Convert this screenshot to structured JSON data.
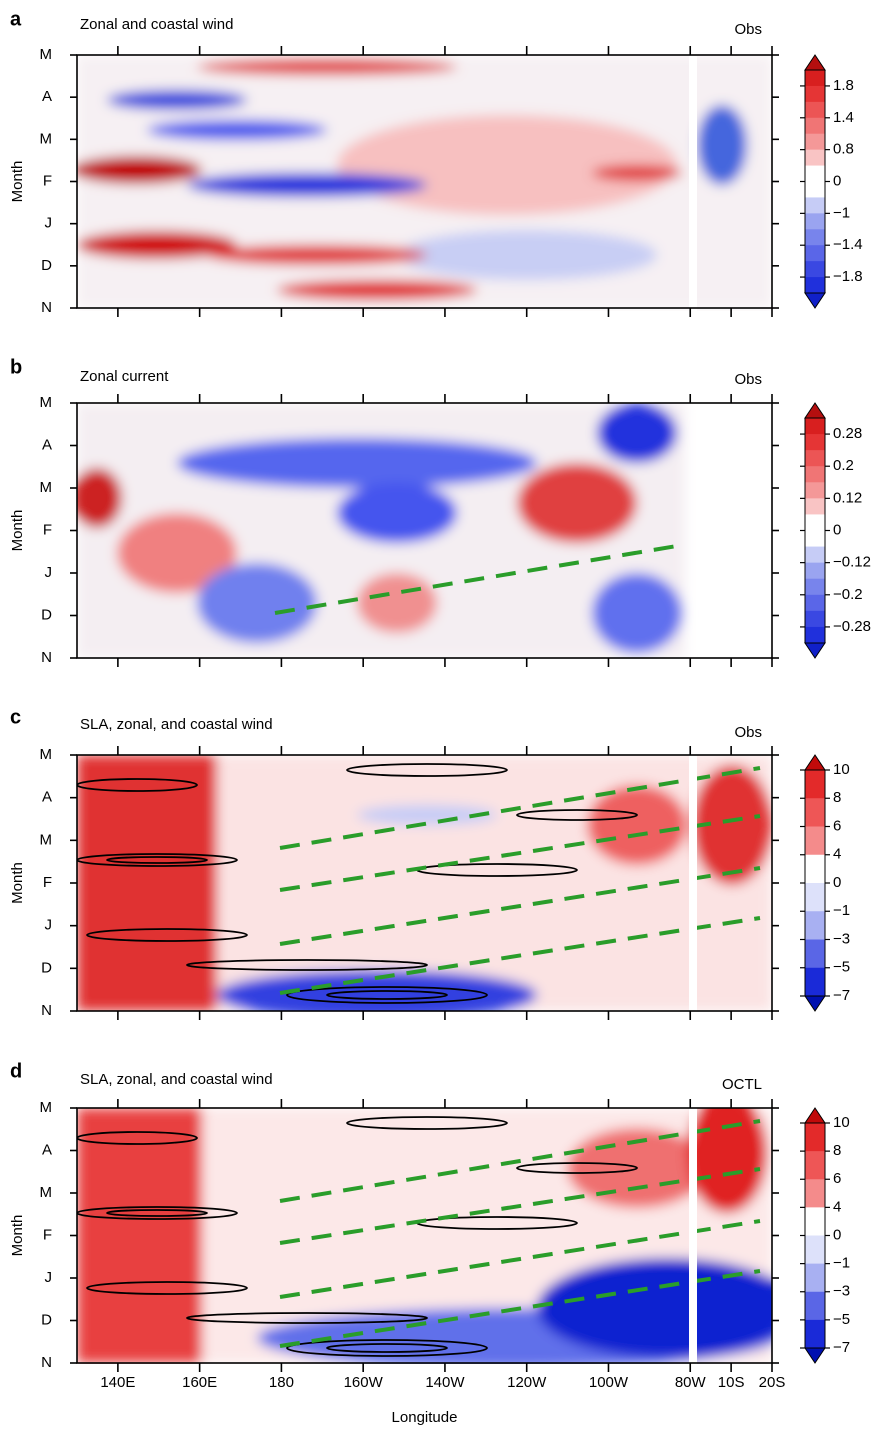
{
  "chart_data": [
    {
      "type": "contour",
      "panel_label": "a",
      "title": "Zonal and coastal wind",
      "corner_label": "Obs",
      "ylabel": "Month",
      "categories": [
        "N",
        "D",
        "J",
        "F",
        "M",
        "A",
        "M"
      ],
      "xlim": [
        130,
        300
      ],
      "xticks": [
        140,
        160,
        180,
        200,
        220,
        240,
        260,
        280,
        290,
        300
      ],
      "colorbar": {
        "ticks": [
          1.8,
          1.4,
          0.8,
          0,
          {
            "value": -1,
            "label": "−1"
          },
          {
            "value": -1.4,
            "label": "−1.4"
          },
          {
            "value": -1.8,
            "label": "−1.8"
          }
        ],
        "colors": [
          "#b40f0f",
          "#d81f1f",
          "#e53535",
          "#ec5555",
          "#f07575",
          "#f49898",
          "#f9c4c4",
          "#ffffff",
          "#ffffff",
          "#c6ccf6",
          "#9aa4f0",
          "#7884ec",
          "#5a66e8",
          "#3a48e2",
          "#2030dc",
          "#1020c8"
        ]
      }
    },
    {
      "type": "contour",
      "panel_label": "b",
      "title": "Zonal current",
      "corner_label": "Obs",
      "ylabel": "Month",
      "categories": [
        "N",
        "D",
        "J",
        "F",
        "M",
        "A",
        "M"
      ],
      "xlim": [
        130,
        300
      ],
      "xticks": [
        140,
        160,
        180,
        200,
        220,
        240,
        260,
        280,
        290,
        300
      ],
      "colorbar": {
        "ticks": [
          0.28,
          0.2,
          0.12,
          0,
          {
            "value": -0.12,
            "label": "−0.12"
          },
          {
            "value": -0.2,
            "label": "−0.2"
          },
          {
            "value": -0.28,
            "label": "−0.28"
          }
        ],
        "colors": [
          "#b40f0f",
          "#d81f1f",
          "#e53535",
          "#ec5555",
          "#f07575",
          "#f49898",
          "#f9c4c4",
          "#ffffff",
          "#ffffff",
          "#c6ccf6",
          "#9aa4f0",
          "#7884ec",
          "#5a66e8",
          "#3a48e2",
          "#2030dc",
          "#1020c8"
        ]
      }
    },
    {
      "type": "contour",
      "panel_label": "c",
      "title": "SLA, zonal, and coastal wind",
      "corner_label": "Obs",
      "ylabel": "Month",
      "categories": [
        "N",
        "D",
        "J",
        "F",
        "M",
        "A",
        "M"
      ],
      "xlim": [
        130,
        300
      ],
      "xticks": [
        140,
        160,
        180,
        200,
        220,
        240,
        260,
        280,
        290,
        300
      ],
      "colorbar": {
        "ticks": [
          10,
          8,
          6,
          4,
          0,
          {
            "value": -1,
            "label": "−1"
          },
          {
            "value": -3,
            "label": "−3"
          },
          {
            "value": -5,
            "label": "−5"
          },
          {
            "value": -7,
            "label": "−7"
          }
        ],
        "colors": [
          "#c00a0a",
          "#e32a2a",
          "#ee5656",
          "#f48b8b",
          "#ffffff",
          "#dde1fa",
          "#a8b0f2",
          "#5a66e6",
          "#1a2ad8",
          "#0010b0"
        ]
      }
    },
    {
      "type": "contour",
      "panel_label": "d",
      "title": "SLA, zonal, and coastal wind",
      "corner_label": "OCTL",
      "ylabel": "Month",
      "xlabel": "Longitude",
      "categories": [
        "N",
        "D",
        "J",
        "F",
        "M",
        "A",
        "M"
      ],
      "xlim": [
        130,
        300
      ],
      "xticks": [
        {
          "value": 140,
          "label": "140E"
        },
        {
          "value": 160,
          "label": "160E"
        },
        {
          "value": 180,
          "label": "180"
        },
        {
          "value": 200,
          "label": "160W"
        },
        {
          "value": 220,
          "label": "140W"
        },
        {
          "value": 240,
          "label": "120W"
        },
        {
          "value": 260,
          "label": "100W"
        },
        {
          "value": 280,
          "label": "80W"
        },
        {
          "value": 290,
          "label": "10S"
        },
        {
          "value": 300,
          "label": "20S"
        }
      ],
      "colorbar": {
        "ticks": [
          10,
          8,
          6,
          4,
          0,
          {
            "value": -1,
            "label": "−1"
          },
          {
            "value": -3,
            "label": "−3"
          },
          {
            "value": -5,
            "label": "−5"
          },
          {
            "value": -7,
            "label": "−7"
          }
        ],
        "colors": [
          "#c00a0a",
          "#e32a2a",
          "#ee5656",
          "#f48b8b",
          "#ffffff",
          "#dde1fa",
          "#a8b0f2",
          "#5a66e6",
          "#1a2ad8",
          "#0010b0"
        ]
      }
    }
  ]
}
